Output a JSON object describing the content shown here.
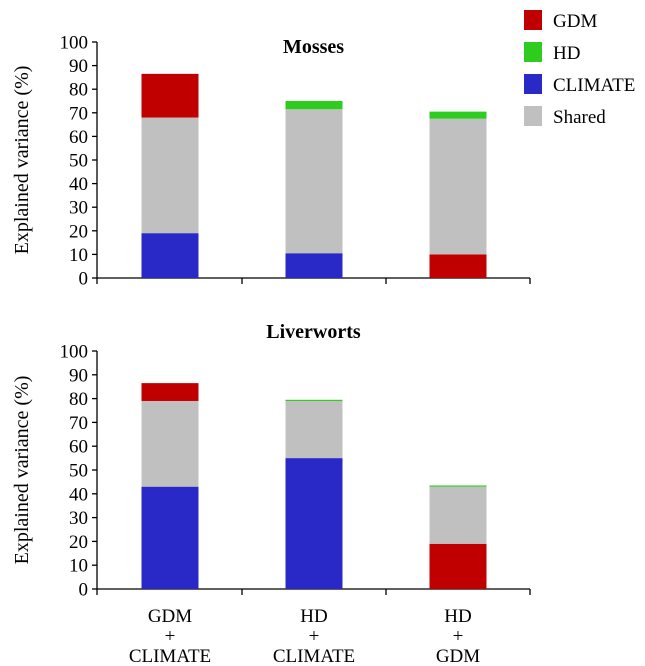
{
  "legend": [
    {
      "key": "gdm",
      "label": "GDM",
      "color": "#c00000"
    },
    {
      "key": "hd",
      "label": "HD",
      "color": "#2ecc1e"
    },
    {
      "key": "climate",
      "label": "CLIMATE",
      "color": "#2929c8"
    },
    {
      "key": "shared",
      "label": "Shared",
      "color": "#c0c0c0"
    }
  ],
  "categories": [
    [
      "GDM",
      "+",
      "CLIMATE"
    ],
    [
      "HD",
      "+",
      "CLIMATE"
    ],
    [
      "HD",
      "+",
      "GDM"
    ]
  ],
  "chart_data": [
    {
      "type": "bar",
      "stacked": true,
      "title": "Mosses",
      "ylabel": "Explained variance (%)",
      "xlabel": "",
      "ylim": [
        0,
        100
      ],
      "yticks": [
        0,
        10,
        20,
        30,
        40,
        50,
        60,
        70,
        80,
        90,
        100
      ],
      "categories": [
        "GDM + CLIMATE",
        "HD + CLIMATE",
        "HD + GDM"
      ],
      "bars": [
        [
          {
            "key": "climate",
            "value": 19
          },
          {
            "key": "shared",
            "value": 49
          },
          {
            "key": "gdm",
            "value": 18.5
          }
        ],
        [
          {
            "key": "climate",
            "value": 10.5
          },
          {
            "key": "shared",
            "value": 61
          },
          {
            "key": "hd",
            "value": 3.5
          }
        ],
        [
          {
            "key": "gdm",
            "value": 10
          },
          {
            "key": "shared",
            "value": 57.5
          },
          {
            "key": "hd",
            "value": 3
          }
        ]
      ]
    },
    {
      "type": "bar",
      "stacked": true,
      "title": "Liverworts",
      "ylabel": "Explained variance (%)",
      "xlabel": "",
      "ylim": [
        0,
        100
      ],
      "yticks": [
        0,
        10,
        20,
        30,
        40,
        50,
        60,
        70,
        80,
        90,
        100
      ],
      "categories": [
        "GDM + CLIMATE",
        "HD + CLIMATE",
        "HD + GDM"
      ],
      "bars": [
        [
          {
            "key": "climate",
            "value": 43
          },
          {
            "key": "shared",
            "value": 36
          },
          {
            "key": "gdm",
            "value": 7.5
          }
        ],
        [
          {
            "key": "climate",
            "value": 55
          },
          {
            "key": "shared",
            "value": 24
          },
          {
            "key": "hd",
            "value": 0.5
          }
        ],
        [
          {
            "key": "gdm",
            "value": 19
          },
          {
            "key": "shared",
            "value": 24
          },
          {
            "key": "hd",
            "value": 0.5
          }
        ]
      ]
    }
  ]
}
